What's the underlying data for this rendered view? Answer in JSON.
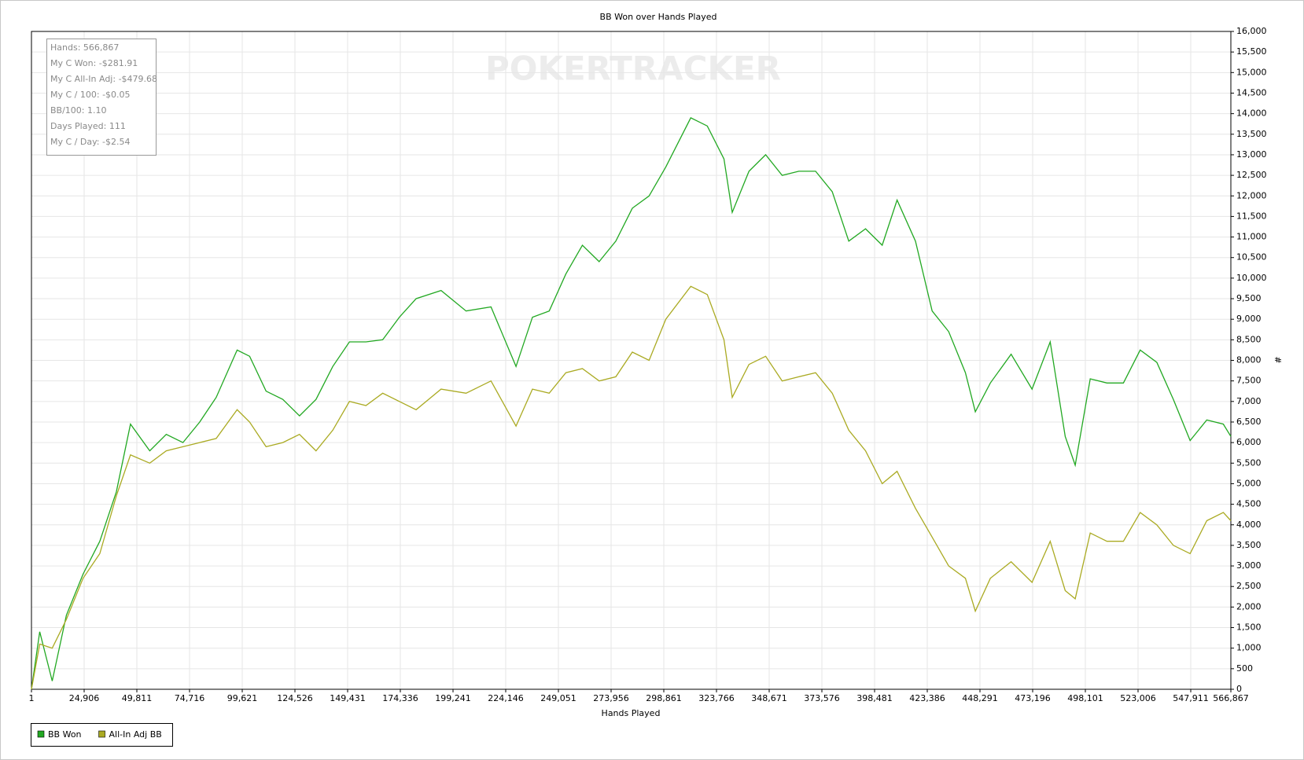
{
  "chart_data": {
    "type": "line",
    "title": "BB Won over Hands Played",
    "x_label": "Hands Played",
    "y_label": "#",
    "watermark": "POKERTRACKER",
    "info_box": [
      "Hands: 566,867",
      "My C Won: -$281.91",
      "My C All-In Adj: -$479.68",
      "My C / 100: -$0.05",
      "BB/100: 1.10",
      "Days Played: 111",
      "My C / Day: -$2.54"
    ],
    "xlim": [
      1,
      566867
    ],
    "xticks": [
      1,
      {
        "value": 24906,
        "label": "24,906"
      },
      {
        "value": 49811,
        "label": "49,811"
      },
      {
        "value": 74716,
        "label": "74,716"
      },
      {
        "value": 99621,
        "label": "99,621"
      },
      {
        "value": 124526,
        "label": "124,526"
      },
      {
        "value": 149431,
        "label": "149,431"
      },
      {
        "value": 174336,
        "label": "174,336"
      },
      {
        "value": 199241,
        "label": "199,241"
      },
      {
        "value": 224146,
        "label": "224,146"
      },
      {
        "value": 249051,
        "label": "249,051"
      },
      {
        "value": 273956,
        "label": "273,956"
      },
      {
        "value": 298861,
        "label": "298,861"
      },
      {
        "value": 323766,
        "label": "323,766"
      },
      {
        "value": 348671,
        "label": "348,671"
      },
      {
        "value": 373576,
        "label": "373,576"
      },
      {
        "value": 398481,
        "label": "398,481"
      },
      {
        "value": 423386,
        "label": "423,386"
      },
      {
        "value": 448291,
        "label": "448,291"
      },
      {
        "value": 473196,
        "label": "473,196"
      },
      {
        "value": 498101,
        "label": "498,101"
      },
      {
        "value": 523006,
        "label": "523,006"
      },
      {
        "value": 547911,
        "label": "547,911"
      },
      {
        "value": 566867,
        "label": "566,867"
      }
    ],
    "ylim": [
      0,
      16000
    ],
    "yticks": [
      0,
      500,
      {
        "value": 1000,
        "label": "1,000"
      },
      {
        "value": 1500,
        "label": "1,500"
      },
      {
        "value": 2000,
        "label": "2,000"
      },
      {
        "value": 2500,
        "label": "2,500"
      },
      {
        "value": 3000,
        "label": "3,000"
      },
      {
        "value": 3500,
        "label": "3,500"
      },
      {
        "value": 4000,
        "label": "4,000"
      },
      {
        "value": 4500,
        "label": "4,500"
      },
      {
        "value": 5000,
        "label": "5,000"
      },
      {
        "value": 5500,
        "label": "5,500"
      },
      {
        "value": 6000,
        "label": "6,000"
      },
      {
        "value": 6500,
        "label": "6,500"
      },
      {
        "value": 7000,
        "label": "7,000"
      },
      {
        "value": 7500,
        "label": "7,500"
      },
      {
        "value": 8000,
        "label": "8,000"
      },
      {
        "value": 8500,
        "label": "8,500"
      },
      {
        "value": 9000,
        "label": "9,000"
      },
      {
        "value": 9500,
        "label": "9,500"
      },
      {
        "value": 10000,
        "label": "10,000"
      },
      {
        "value": 10500,
        "label": "10,500"
      },
      {
        "value": 11000,
        "label": "11,000"
      },
      {
        "value": 11500,
        "label": "11,500"
      },
      {
        "value": 12000,
        "label": "12,000"
      },
      {
        "value": 12500,
        "label": "12,500"
      },
      {
        "value": 13000,
        "label": "13,000"
      },
      {
        "value": 13500,
        "label": "13,500"
      },
      {
        "value": 14000,
        "label": "14,000"
      },
      {
        "value": 14500,
        "label": "14,500"
      },
      {
        "value": 15000,
        "label": "15,000"
      },
      {
        "value": 15500,
        "label": "15,500"
      },
      {
        "value": 16000,
        "label": "16,000"
      }
    ],
    "grid": true,
    "legend": "bottom-left",
    "x": [
      1,
      3900,
      9800,
      16500,
      24400,
      32300,
      40100,
      46800,
      55900,
      63700,
      71600,
      79500,
      87300,
      97200,
      103100,
      110900,
      118800,
      126700,
      134500,
      142400,
      150300,
      158100,
      166000,
      173900,
      181800,
      193600,
      205400,
      217200,
      229000,
      236800,
      244700,
      252600,
      260400,
      268300,
      276200,
      284000,
      291900,
      299800,
      311600,
      319400,
      327300,
      331200,
      339100,
      347000,
      354800,
      362700,
      370600,
      378500,
      386300,
      394200,
      402100,
      409100,
      417800,
      425700,
      433500,
      441400,
      446100,
      453200,
      463000,
      472900,
      481500,
      488600,
      493300,
      500400,
      508300,
      516100,
      524000,
      531900,
      539700,
      547600,
      555500,
      563300,
      566867
    ],
    "series": [
      {
        "name": "BB Won",
        "color": "#22a822",
        "values": [
          0,
          1400,
          200,
          1800,
          2800,
          3600,
          4800,
          6450,
          5800,
          6200,
          6000,
          6500,
          7100,
          8250,
          8100,
          7250,
          7050,
          6650,
          7050,
          7850,
          8450,
          8450,
          8500,
          9050,
          9500,
          9700,
          9200,
          9300,
          7850,
          9050,
          9200,
          10100,
          10800,
          10400,
          10900,
          11700,
          12000,
          12700,
          13900,
          13700,
          12900,
          11600,
          12600,
          13000,
          12500,
          12600,
          12600,
          12100,
          10900,
          11200,
          10800,
          11900,
          10900,
          9200,
          8700,
          7700,
          6750,
          7450,
          8150,
          7300,
          8450,
          6150,
          5450,
          7550,
          7450,
          7450,
          8250,
          7950,
          7050,
          6050,
          6550,
          6450,
          6150
        ]
      },
      {
        "name": "All-In Adj BB",
        "color": "#aaaa22",
        "values": [
          0,
          1100,
          1000,
          1700,
          2700,
          3300,
          4700,
          5700,
          5500,
          5800,
          5900,
          6000,
          6100,
          6800,
          6500,
          5900,
          6000,
          6200,
          5800,
          6300,
          7000,
          6900,
          7200,
          7000,
          6800,
          7300,
          7200,
          7500,
          6400,
          7300,
          7200,
          7700,
          7800,
          7500,
          7600,
          8200,
          8000,
          9000,
          9800,
          9600,
          8500,
          7100,
          7900,
          8100,
          7500,
          7600,
          7700,
          7200,
          6300,
          5800,
          5000,
          5300,
          4400,
          3700,
          3000,
          2700,
          1900,
          2700,
          3100,
          2600,
          3600,
          2400,
          2200,
          3800,
          3600,
          3600,
          4300,
          4000,
          3500,
          3300,
          4100,
          4300,
          4100
        ]
      }
    ]
  }
}
